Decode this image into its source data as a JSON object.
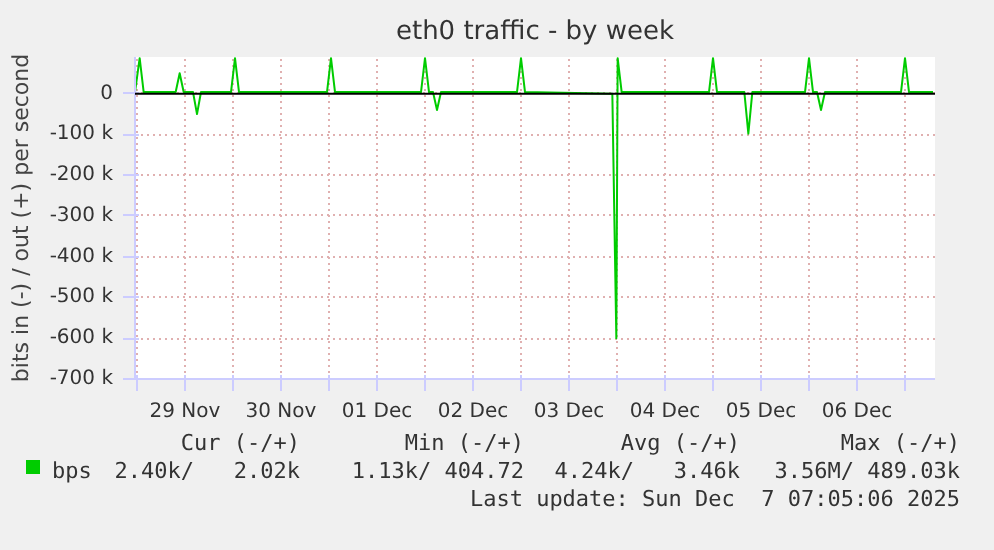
{
  "chart_data": {
    "type": "line",
    "title": "eth0 traffic - by week",
    "ylabel": "bits in (-) / out (+) per second",
    "xlim": [
      "2025-11-28T23:30",
      "2025-12-07T07:30"
    ],
    "xticks": [
      {
        "value": "2025-11-29T00:00",
        "label": null
      },
      {
        "value": "2025-11-29T12:00",
        "label": "29 Nov"
      },
      {
        "value": "2025-11-30T00:00",
        "label": null
      },
      {
        "value": "2025-11-30T12:00",
        "label": "30 Nov"
      },
      {
        "value": "2025-12-01T00:00",
        "label": null
      },
      {
        "value": "2025-12-01T12:00",
        "label": "01 Dec"
      },
      {
        "value": "2025-12-02T00:00",
        "label": null
      },
      {
        "value": "2025-12-02T12:00",
        "label": "02 Dec"
      },
      {
        "value": "2025-12-03T00:00",
        "label": null
      },
      {
        "value": "2025-12-03T12:00",
        "label": "03 Dec"
      },
      {
        "value": "2025-12-04T00:00",
        "label": null
      },
      {
        "value": "2025-12-04T12:00",
        "label": "04 Dec"
      },
      {
        "value": "2025-12-05T00:00",
        "label": null
      },
      {
        "value": "2025-12-05T12:00",
        "label": "05 Dec"
      },
      {
        "value": "2025-12-06T00:00",
        "label": null
      },
      {
        "value": "2025-12-06T12:00",
        "label": "06 Dec"
      },
      {
        "value": "2025-12-07T00:00",
        "label": null
      }
    ],
    "ylim": [
      -700000,
      90000
    ],
    "yticks": [
      {
        "value": 0,
        "label": "0"
      },
      {
        "value": -100000,
        "label": "-100 k"
      },
      {
        "value": -200000,
        "label": "-200 k"
      },
      {
        "value": -300000,
        "label": "-300 k"
      },
      {
        "value": -400000,
        "label": "-400 k"
      },
      {
        "value": -500000,
        "label": "-500 k"
      },
      {
        "value": -600000,
        "label": "-600 k"
      },
      {
        "value": -700000,
        "label": "-700 k"
      }
    ],
    "grid": true,
    "legend": "bottom",
    "series": [
      {
        "name": "bps",
        "color": "#00cc00",
        "x": [
          "2025-11-28T23:30",
          "2025-11-29T00:40",
          "2025-11-29T01:40",
          "2025-11-29T09:40",
          "2025-11-29T10:40",
          "2025-11-29T11:40",
          "2025-11-29T14:00",
          "2025-11-29T15:00",
          "2025-11-29T16:00",
          "2025-11-29T23:30",
          "2025-11-30T00:30",
          "2025-11-30T01:30",
          "2025-11-30T23:30",
          "2025-12-01T00:30",
          "2025-12-01T01:30",
          "2025-12-01T23:00",
          "2025-12-02T00:00",
          "2025-12-02T01:00",
          "2025-12-02T02:00",
          "2025-12-02T03:00",
          "2025-12-02T04:00",
          "2025-12-02T23:00",
          "2025-12-03T00:00",
          "2025-12-03T01:00",
          "2025-12-03T22:50",
          "2025-12-03T23:50",
          "2025-12-04T00:10",
          "2025-12-04T01:10",
          "2025-12-04T23:00",
          "2025-12-05T00:00",
          "2025-12-05T01:00",
          "2025-12-05T07:50",
          "2025-12-05T08:50",
          "2025-12-05T09:50",
          "2025-12-05T23:00",
          "2025-12-06T00:00",
          "2025-12-06T01:00",
          "2025-12-06T02:00",
          "2025-12-06T03:00",
          "2025-12-06T04:00",
          "2025-12-06T23:00",
          "2025-12-07T00:00",
          "2025-12-07T01:00",
          "2025-12-07T07:00"
        ],
        "values": [
          4000,
          87000,
          4000,
          4000,
          50000,
          4000,
          4000,
          -50000,
          4000,
          4000,
          87000,
          4000,
          4000,
          87000,
          4000,
          4000,
          87000,
          4000,
          4000,
          -40000,
          4000,
          4000,
          87000,
          4000,
          0,
          -600000,
          87000,
          4000,
          4000,
          87000,
          4000,
          4000,
          -98000,
          4000,
          4000,
          87000,
          4000,
          4000,
          -40000,
          4000,
          4000,
          87000,
          4000,
          4000
        ]
      }
    ],
    "annotations": [
      "Cur (-/+)",
      "Min (-/+)",
      "Avg (-/+)",
      "Max (-/+)",
      "2.40k/   2.02k",
      "1.13k/ 404.72",
      "4.24k/   3.46k",
      "3.56M/ 489.03k",
      "Last update: Sun Dec  7 07:05:06 2025"
    ]
  }
}
